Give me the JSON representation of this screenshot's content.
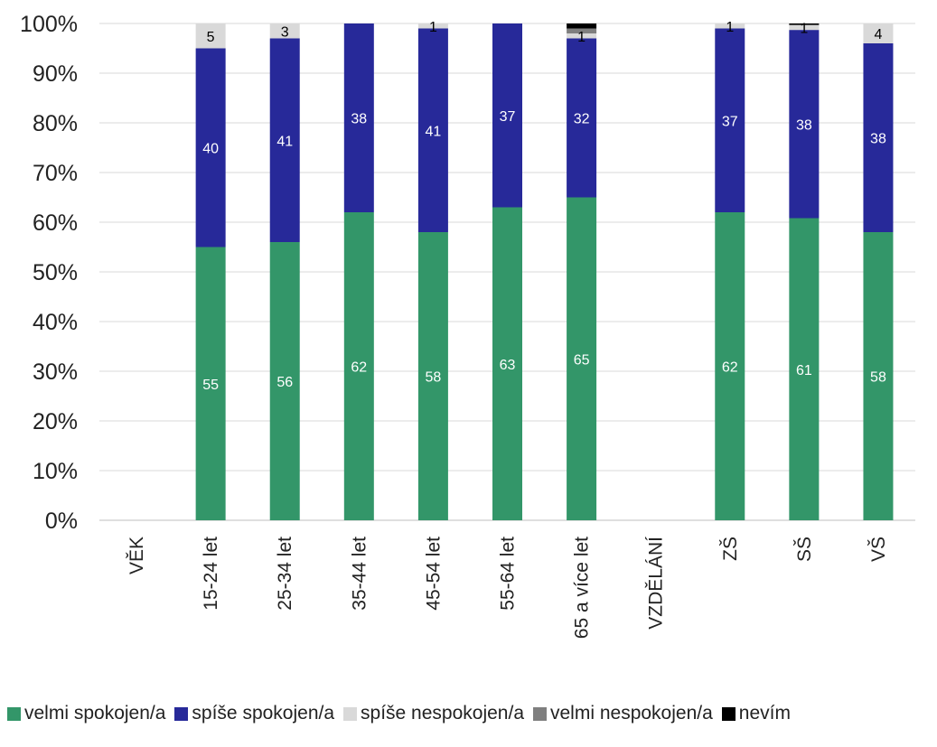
{
  "chart_data": {
    "type": "bar",
    "stacked": true,
    "percent_stacked": true,
    "title": "",
    "xlabel": "",
    "ylabel": "",
    "ylim": [
      0,
      100
    ],
    "y_ticks": [
      "0%",
      "10%",
      "20%",
      "30%",
      "40%",
      "50%",
      "60%",
      "70%",
      "80%",
      "90%",
      "100%"
    ],
    "grid": true,
    "legend_position": "bottom",
    "categories": [
      "VĚK",
      "15-24 let",
      "25-34 let",
      "35-44 let",
      "45-54 let",
      "55-64 let",
      "65 a více let",
      "VZDĚLÁNÍ",
      "ZŠ",
      "SŠ",
      "VŠ"
    ],
    "series": [
      {
        "name": "velmi spokojen/a",
        "color": "#339669",
        "label_color": "#ffffff",
        "values": [
          null,
          55,
          56,
          62,
          58,
          63,
          65,
          null,
          62,
          61,
          58
        ],
        "labels": [
          "",
          "55",
          "56",
          "62",
          "58",
          "63",
          "65",
          "",
          "62",
          "61",
          "58"
        ]
      },
      {
        "name": "spíše spokojen/a",
        "color": "#272999",
        "label_color": "#ffffff",
        "values": [
          null,
          40,
          41,
          38,
          41,
          37,
          32,
          null,
          37,
          38,
          38
        ],
        "labels": [
          "",
          "40",
          "41",
          "38",
          "41",
          "37",
          "32",
          "",
          "37",
          "38",
          "38"
        ]
      },
      {
        "name": "spíše nespokojen/a",
        "color": "#d9d9d9",
        "label_color": "#000000",
        "values": [
          null,
          5,
          3,
          0,
          1,
          0,
          1,
          null,
          1,
          1,
          4
        ],
        "labels": [
          "",
          "5",
          "3",
          "",
          "1",
          "",
          "1",
          "",
          "1",
          "1",
          "4"
        ]
      },
      {
        "name": "velmi nespokojen/a",
        "color": "#7f7f7f",
        "label_color": "#ffffff",
        "values": [
          null,
          0,
          0,
          0,
          0,
          0,
          1,
          null,
          0,
          0,
          0
        ],
        "labels": [
          "",
          "",
          "",
          "",
          "",
          "",
          "",
          "",
          "",
          "",
          ""
        ]
      },
      {
        "name": "nevím",
        "color": "#000000",
        "label_color": "#ffffff",
        "values": [
          null,
          0,
          0,
          0,
          0,
          0,
          1,
          null,
          0,
          0.3,
          0
        ],
        "labels": [
          "",
          "",
          "",
          "",
          "",
          "",
          "",
          "",
          "",
          "",
          ""
        ]
      }
    ]
  }
}
